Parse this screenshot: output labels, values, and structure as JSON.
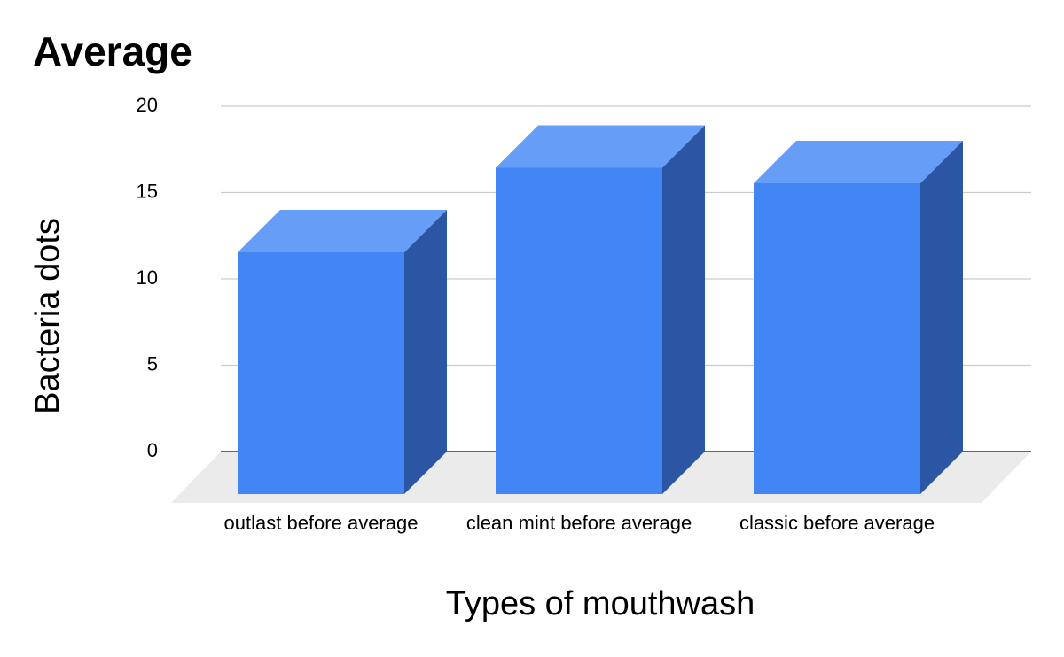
{
  "chart_data": {
    "type": "bar3d",
    "title": "Average",
    "x_label": "Types of mouthwash",
    "y_label": "Bacteria dots",
    "categories": [
      "outlast before average",
      "clean mint before average",
      "classic before average"
    ],
    "values": [
      14,
      18.9,
      18
    ],
    "color": "#4285f4",
    "top_color": "#669df6",
    "side_color": "#2a56a3",
    "ylim": [
      0,
      20
    ],
    "yticks": [
      0,
      5,
      10,
      15,
      20
    ],
    "grid": true
  }
}
